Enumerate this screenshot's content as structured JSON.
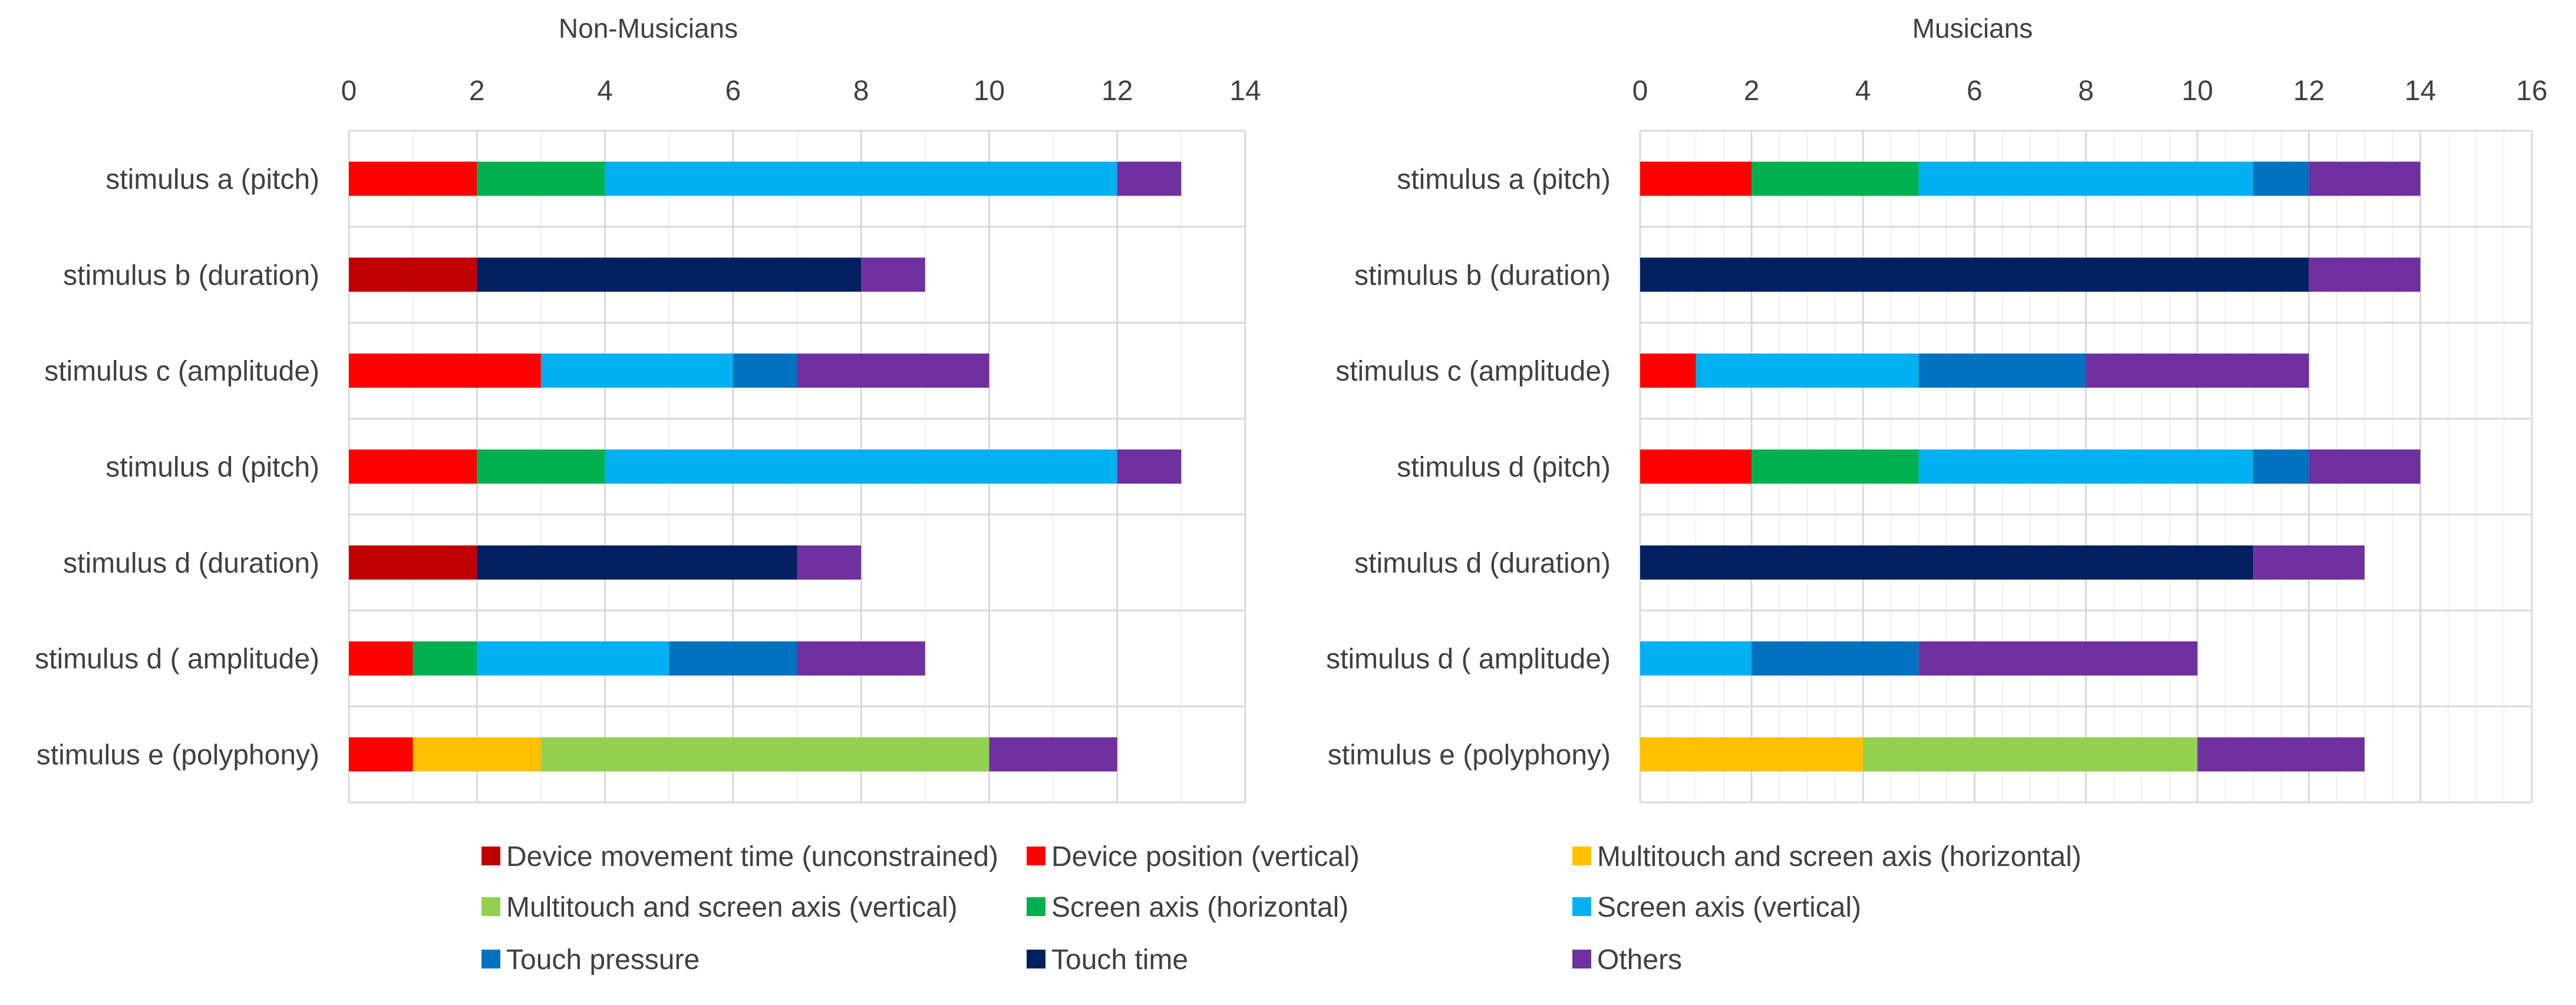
{
  "chart_data": {
    "type": "stacked-horizontal-bar",
    "legend_position": "bottom",
    "legend": [
      {
        "key": "dmt",
        "label": "Device movement time (unconstrained)",
        "color": "#C00000"
      },
      {
        "key": "dpv",
        "label": "Device position (vertical)",
        "color": "#FF0000"
      },
      {
        "key": "msh",
        "label": "Multitouch and screen axis (horizontal)",
        "color": "#FFC000"
      },
      {
        "key": "msv",
        "label": "Multitouch and screen axis (vertical)",
        "color": "#92D050"
      },
      {
        "key": "sah",
        "label": "Screen axis (horizontal)",
        "color": "#00B050"
      },
      {
        "key": "sav",
        "label": "Screen axis (vertical)",
        "color": "#00B0F0"
      },
      {
        "key": "tp",
        "label": "Touch pressure",
        "color": "#0070C0"
      },
      {
        "key": "tt",
        "label": "Touch time",
        "color": "#002060"
      },
      {
        "key": "oth",
        "label": "Others",
        "color": "#7030A0"
      }
    ],
    "panels": [
      {
        "title": "Non-Musicians",
        "xlim": [
          0,
          14
        ],
        "major_ticks": [
          0,
          2,
          4,
          6,
          8,
          10,
          12,
          14
        ],
        "minor_step": 1,
        "categories": [
          {
            "label": "stimulus a (pitch)",
            "segments": [
              [
                "dpv",
                2
              ],
              [
                "sah",
                2
              ],
              [
                "sav",
                8
              ],
              [
                "oth",
                1
              ]
            ]
          },
          {
            "label": "stimulus b (duration)",
            "segments": [
              [
                "dmt",
                2
              ],
              [
                "tt",
                6
              ],
              [
                "oth",
                1
              ]
            ]
          },
          {
            "label": "stimulus c (amplitude)",
            "segments": [
              [
                "dpv",
                3
              ],
              [
                "sav",
                3
              ],
              [
                "tp",
                1
              ],
              [
                "oth",
                3
              ]
            ]
          },
          {
            "label": "stimulus d (pitch)",
            "segments": [
              [
                "dpv",
                2
              ],
              [
                "sah",
                2
              ],
              [
                "sav",
                8
              ],
              [
                "oth",
                1
              ]
            ]
          },
          {
            "label": "stimulus d (duration)",
            "segments": [
              [
                "dmt",
                2
              ],
              [
                "tt",
                5
              ],
              [
                "oth",
                1
              ]
            ]
          },
          {
            "label": "stimulus d ( amplitude)",
            "segments": [
              [
                "dpv",
                1
              ],
              [
                "sah",
                1
              ],
              [
                "sav",
                3
              ],
              [
                "tp",
                2
              ],
              [
                "oth",
                2
              ]
            ]
          },
          {
            "label": "stimulus e (polyphony)",
            "segments": [
              [
                "dpv",
                1
              ],
              [
                "msh",
                2
              ],
              [
                "msv",
                7
              ],
              [
                "oth",
                2
              ]
            ]
          }
        ]
      },
      {
        "title": "Musicians",
        "xlim": [
          0,
          16
        ],
        "major_ticks": [
          0,
          2,
          4,
          6,
          8,
          10,
          12,
          14,
          16
        ],
        "minor_step": 0.5,
        "categories": [
          {
            "label": "stimulus a (pitch)",
            "segments": [
              [
                "dpv",
                2
              ],
              [
                "sah",
                3
              ],
              [
                "sav",
                6
              ],
              [
                "tp",
                1
              ],
              [
                "oth",
                2
              ]
            ]
          },
          {
            "label": "stimulus b (duration)",
            "segments": [
              [
                "tt",
                12
              ],
              [
                "oth",
                2
              ]
            ]
          },
          {
            "label": "stimulus c (amplitude)",
            "segments": [
              [
                "dpv",
                1
              ],
              [
                "sav",
                4
              ],
              [
                "tp",
                3
              ],
              [
                "oth",
                4
              ]
            ]
          },
          {
            "label": "stimulus d (pitch)",
            "segments": [
              [
                "dpv",
                2
              ],
              [
                "sah",
                3
              ],
              [
                "sav",
                6
              ],
              [
                "tp",
                1
              ],
              [
                "oth",
                2
              ]
            ]
          },
          {
            "label": "stimulus d (duration)",
            "segments": [
              [
                "tt",
                11
              ],
              [
                "oth",
                2
              ]
            ]
          },
          {
            "label": "stimulus d ( amplitude)",
            "segments": [
              [
                "sav",
                2
              ],
              [
                "tp",
                3
              ],
              [
                "oth",
                5
              ]
            ]
          },
          {
            "label": "stimulus e (polyphony)",
            "segments": [
              [
                "msh",
                4
              ],
              [
                "msv",
                6
              ],
              [
                "oth",
                3
              ]
            ]
          }
        ]
      }
    ]
  }
}
